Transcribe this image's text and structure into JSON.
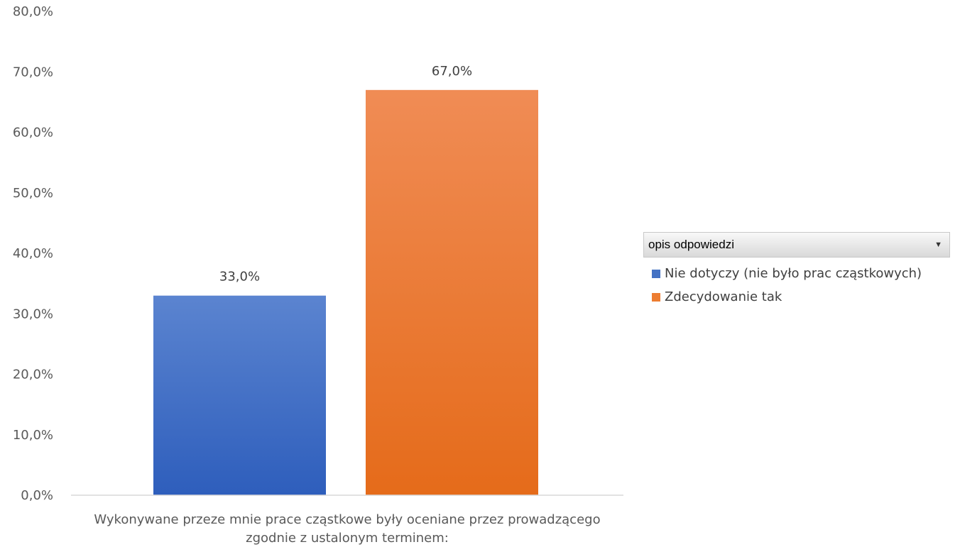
{
  "chart_data": {
    "type": "bar",
    "categories": [
      "Wykonywane przeze mnie prace cząstkowe były oceniane przez prowadzącego zgodnie z ustalonym terminem:"
    ],
    "category_lines": [
      "Wykonywane przeze mnie prace cząstkowe były oceniane przez prowadzącego",
      "zgodnie z ustalonym terminem:"
    ],
    "series": [
      {
        "name": "Nie dotyczy (nie było prac cząstkowych)",
        "values": [
          33.0
        ],
        "label": "33,0%",
        "color": "#4472c4"
      },
      {
        "name": "Zdecydowanie tak",
        "values": [
          67.0
        ],
        "label": "67,0%",
        "color": "#ed7d31"
      }
    ],
    "ylim": [
      0,
      80
    ],
    "y_ticks": [
      "0,0%",
      "10,0%",
      "20,0%",
      "30,0%",
      "40,0%",
      "50,0%",
      "60,0%",
      "70,0%",
      "80,0%"
    ],
    "grid": false,
    "legend_position": "right",
    "legend_title": "opis odpowiedzi"
  }
}
